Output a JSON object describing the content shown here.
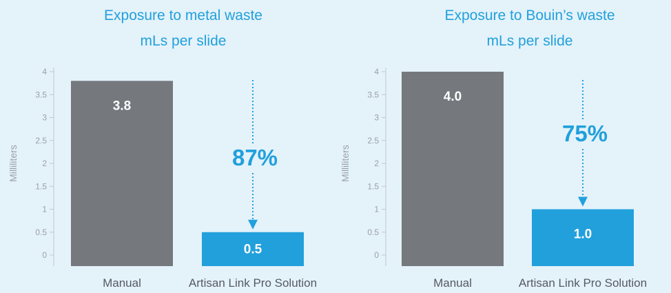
{
  "colors": {
    "background": "#e4f2fa",
    "manual_bar": "#75797e",
    "solution_bar": "#21a0dc",
    "title": "#21a0dc",
    "axis_text": "#9aa0a6",
    "category_text": "#555a60",
    "bar_label": "#ffffff",
    "arrow": "#21a0dc",
    "percent_text": "#21a0dc"
  },
  "chart_data": [
    {
      "type": "bar",
      "title": "Exposure to metal waste",
      "subtitle": "mLs per slide",
      "ylabel": "Milliliters",
      "xlabel": "",
      "categories": [
        "Manual",
        "Artisan  Link Pro Solution"
      ],
      "values": [
        3.8,
        0.5
      ],
      "value_labels": [
        "3.8",
        "0.5"
      ],
      "ylim": [
        0,
        4
      ],
      "yticks": [
        "0",
        "0.5",
        "1",
        "1.5",
        "2",
        "2.5",
        "3",
        "3.5",
        "4"
      ],
      "grid": false,
      "annotation": {
        "text": "87%",
        "type": "reduction-arrow",
        "arrow_from": 4,
        "arrow_to": 0.5
      }
    },
    {
      "type": "bar",
      "title": "Exposure to Bouin’s waste",
      "subtitle": "mLs per slide",
      "ylabel": "Milliliters",
      "xlabel": "",
      "categories": [
        "Manual",
        "Artisan  Link Pro Solution"
      ],
      "values": [
        4.0,
        1.0
      ],
      "value_labels": [
        "4.0",
        "1.0"
      ],
      "ylim": [
        0,
        4
      ],
      "yticks": [
        "0",
        "0.5",
        "1",
        "1.5",
        "2",
        "2.5",
        "3",
        "3.5",
        "4"
      ],
      "grid": false,
      "annotation": {
        "text": "75%",
        "type": "reduction-arrow",
        "arrow_from": 4,
        "arrow_to": 1.0
      }
    }
  ]
}
